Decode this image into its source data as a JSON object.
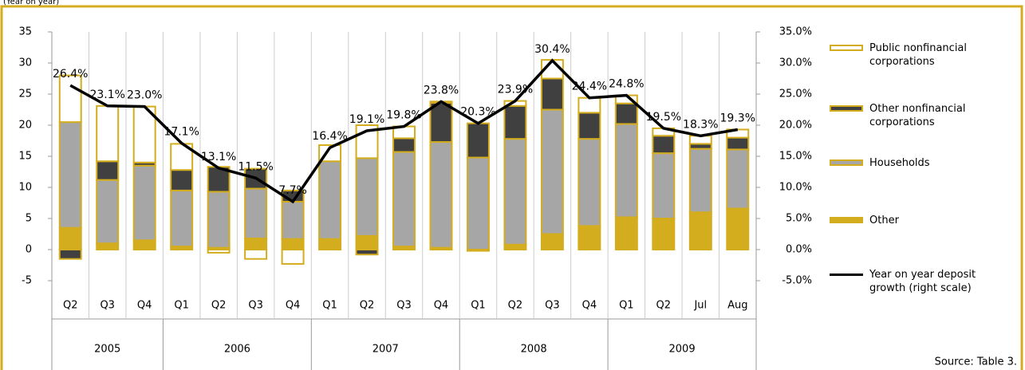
{
  "chart_data": {
    "type": "bar",
    "subtitle": "(Year on year)",
    "source": "Source: Table 3.",
    "categories": [
      "Q2",
      "Q3",
      "Q4",
      "Q1",
      "Q2",
      "Q3",
      "Q4",
      "Q1",
      "Q2",
      "Q3",
      "Q4",
      "Q1",
      "Q2",
      "Q3",
      "Q4",
      "Q1",
      "Q2",
      "Jul",
      "Aug"
    ],
    "groups": [
      {
        "label": "2005",
        "count": 3
      },
      {
        "label": "2006",
        "count": 4
      },
      {
        "label": "2007",
        "count": 4
      },
      {
        "label": "2008",
        "count": 4
      },
      {
        "label": "2009",
        "count": 4
      }
    ],
    "ylim": [
      -5,
      35
    ],
    "yticks": [
      -5,
      0,
      5,
      10,
      15,
      20,
      25,
      30,
      35
    ],
    "y2lim": [
      -5,
      35
    ],
    "y2ticks": [
      {
        "value": -5,
        "label": "-5.0%"
      },
      {
        "value": 0,
        "label": "0.0%"
      },
      {
        "value": 5,
        "label": "5.0%"
      },
      {
        "value": 10,
        "label": "10.0%"
      },
      {
        "value": 15,
        "label": "15.0%"
      },
      {
        "value": 20,
        "label": "20.0%"
      },
      {
        "value": 25,
        "label": "25.0%"
      },
      {
        "value": 30,
        "label": "30.0%"
      },
      {
        "value": 35,
        "label": "35.0%"
      }
    ],
    "stacked": true,
    "series": [
      {
        "name": "Public nonfinancial corporations",
        "type": "bar",
        "color": "#ffffff",
        "edge": "#d4ad1e",
        "values": [
          7.5,
          8.9,
          9,
          4.2,
          -0.5,
          -1.5,
          -2.3,
          2.6,
          5.3,
          1.9,
          0.2,
          0,
          0.8,
          3,
          2.4,
          1.3,
          1.2,
          1.3,
          1.3
        ]
      },
      {
        "name": "Other nonfinancial corporations",
        "type": "bar",
        "color": "#404040",
        "edge": "#d4ad1e",
        "values": [
          -1.5,
          3,
          0.5,
          3.3,
          4,
          3.2,
          1.8,
          0,
          -0.8,
          2.2,
          6.3,
          5.5,
          5.3,
          5,
          4.2,
          3.3,
          2.8,
          0.8,
          1.9
        ]
      },
      {
        "name": "Households",
        "type": "bar",
        "color": "#a6a6a6",
        "edge": "#d4ad1e",
        "values": [
          17,
          10.2,
          12,
          9,
          9,
          8,
          6,
          12.5,
          12.5,
          15.2,
          17,
          14.8,
          17,
          20,
          14,
          15,
          10.5,
          10.2,
          9.5
        ]
      },
      {
        "name": "Other",
        "type": "bar",
        "color": "#d4ad1e",
        "edge": "#d4ad1e",
        "values": [
          3.5,
          1,
          1.5,
          0.5,
          0.3,
          1.8,
          1.7,
          1.7,
          2.2,
          0.5,
          0.3,
          -0.2,
          0.8,
          2.5,
          3.8,
          5.2,
          5,
          6,
          6.6
        ]
      },
      {
        "name": "Year on year deposit growth (right scale)",
        "type": "line",
        "axis": "y2",
        "color": "#000000",
        "values": [
          26.4,
          23.1,
          23.0,
          17.1,
          13.1,
          11.5,
          7.7,
          16.4,
          19.1,
          19.8,
          23.8,
          20.3,
          23.9,
          30.4,
          24.4,
          24.8,
          19.5,
          18.3,
          19.3
        ],
        "value_labels": [
          "26.4%",
          "23.1%",
          "23.0%",
          "17.1%",
          "13.1%",
          "11.5%",
          "7.7%",
          "16.4%",
          "19.1%",
          "19.8%",
          "23.8%",
          "20.3%",
          "23.9%",
          "30.4%",
          "24.4%",
          "24.8%",
          "19.5%",
          "18.3%",
          "19.3%"
        ]
      }
    ]
  }
}
